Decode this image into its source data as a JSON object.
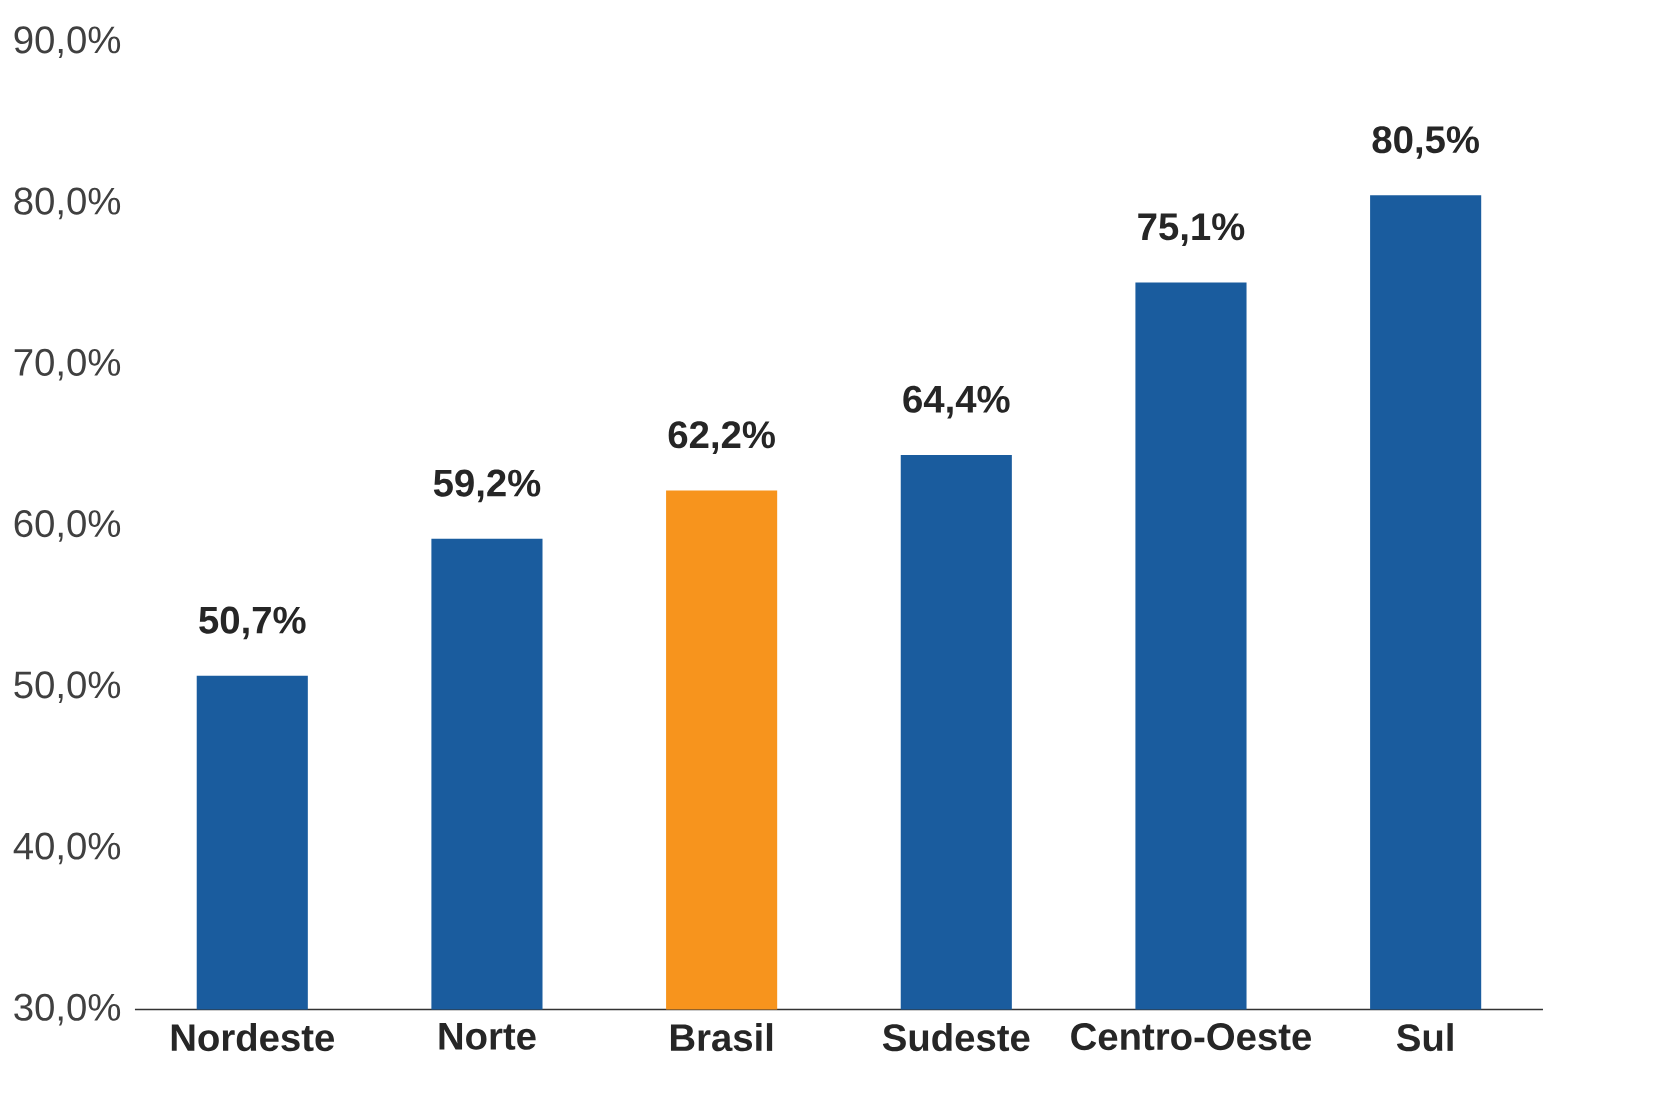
{
  "chart_data": {
    "type": "bar",
    "categories": [
      "Nordeste",
      "Norte",
      "Brasil",
      "Sudeste",
      "Centro-Oeste",
      "Sul"
    ],
    "values": [
      50.7,
      59.2,
      62.2,
      64.4,
      75.1,
      80.5
    ],
    "colors": [
      "#1a5c9e",
      "#1a5c9e",
      "#f7941d",
      "#1a5c9e",
      "#1a5c9e",
      "#1a5c9e"
    ],
    "value_labels": [
      "50,7%",
      "59,2%",
      "62,2%",
      "64,4%",
      "75,1%",
      "80,5%"
    ],
    "ylim": [
      30,
      90
    ],
    "yticks": [
      {
        "value": 30,
        "label": "30,0%"
      },
      {
        "value": 40,
        "label": "40,0%"
      },
      {
        "value": 50,
        "label": "50,0%"
      },
      {
        "value": 60,
        "label": "60,0%"
      },
      {
        "value": 70,
        "label": "70,0%"
      },
      {
        "value": 80,
        "label": "80,0%"
      },
      {
        "value": 90,
        "label": "90,0%"
      }
    ],
    "grid": false
  }
}
